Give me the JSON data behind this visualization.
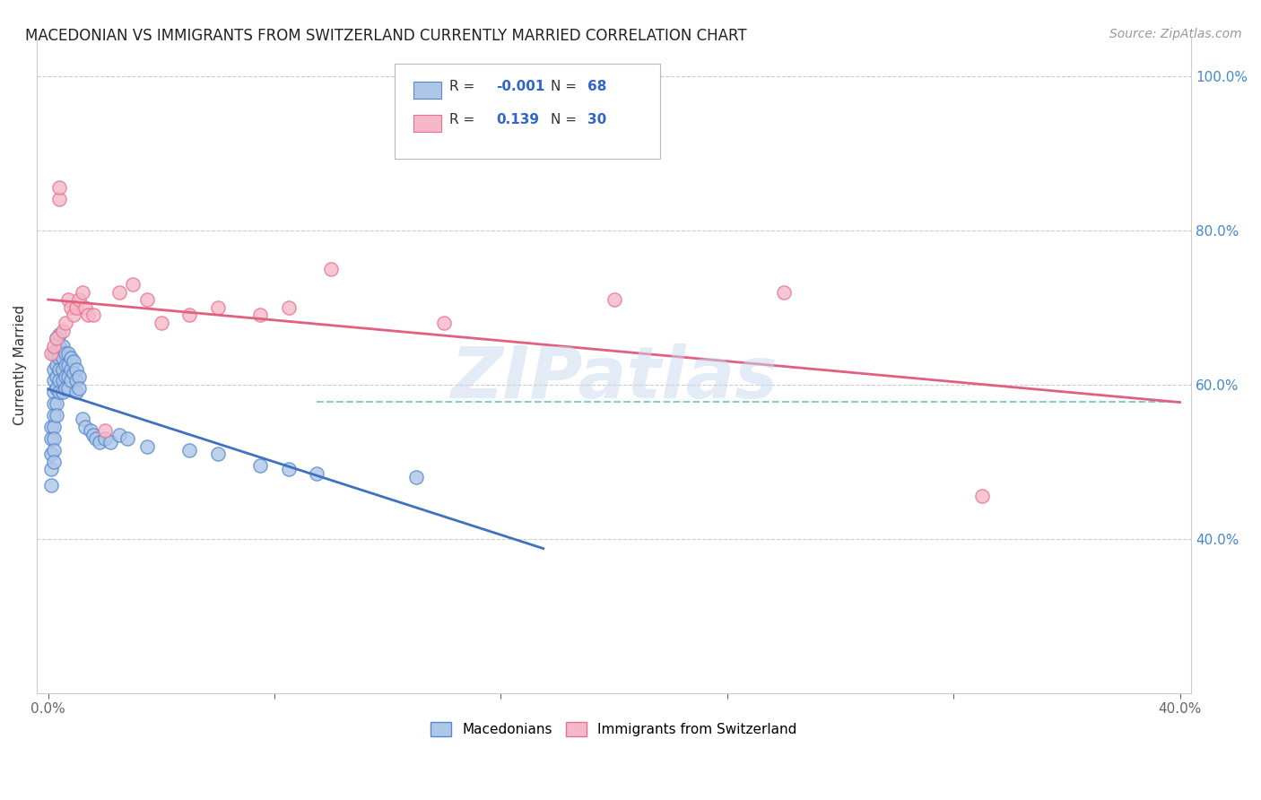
{
  "title": "MACEDONIAN VS IMMIGRANTS FROM SWITZERLAND CURRENTLY MARRIED CORRELATION CHART",
  "source": "Source: ZipAtlas.com",
  "ylabel_label": "Currently Married",
  "xlim": [
    0.0,
    0.4
  ],
  "ylim": [
    0.2,
    1.05
  ],
  "right_yticks": [
    0.4,
    0.6,
    0.8,
    1.0
  ],
  "right_yticklabels": [
    "40.0%",
    "60.0%",
    "80.0%",
    "100.0%"
  ],
  "xticks": [
    0.0,
    0.08,
    0.16,
    0.24,
    0.32,
    0.4
  ],
  "xticklabels": [
    "0.0%",
    "",
    "",
    "",
    "",
    "40.0%"
  ],
  "legend_R_blue": "-0.001",
  "legend_N_blue": "68",
  "legend_R_pink": "0.139",
  "legend_N_pink": "30",
  "blue_fill": "#aec6e8",
  "pink_fill": "#f4b8c8",
  "blue_edge": "#5588cc",
  "pink_edge": "#e87090",
  "blue_line": "#4070c0",
  "pink_line": "#e06080",
  "dashed_color": "#88cccc",
  "grid_color": "#cccccc",
  "watermark": "ZIPatlas",
  "mac_x": [
    0.001,
    0.001,
    0.001,
    0.001,
    0.001,
    0.002,
    0.002,
    0.002,
    0.002,
    0.002,
    0.002,
    0.002,
    0.002,
    0.002,
    0.002,
    0.003,
    0.003,
    0.003,
    0.003,
    0.003,
    0.003,
    0.003,
    0.004,
    0.004,
    0.004,
    0.004,
    0.004,
    0.004,
    0.005,
    0.005,
    0.005,
    0.005,
    0.005,
    0.006,
    0.006,
    0.006,
    0.006,
    0.007,
    0.007,
    0.007,
    0.007,
    0.008,
    0.008,
    0.008,
    0.009,
    0.009,
    0.01,
    0.01,
    0.01,
    0.011,
    0.011,
    0.012,
    0.013,
    0.015,
    0.016,
    0.017,
    0.018,
    0.02,
    0.022,
    0.025,
    0.028,
    0.035,
    0.05,
    0.06,
    0.075,
    0.085,
    0.095,
    0.13
  ],
  "mac_y": [
    0.545,
    0.53,
    0.51,
    0.49,
    0.47,
    0.64,
    0.62,
    0.605,
    0.59,
    0.575,
    0.56,
    0.545,
    0.53,
    0.515,
    0.5,
    0.66,
    0.645,
    0.625,
    0.61,
    0.595,
    0.575,
    0.56,
    0.665,
    0.65,
    0.635,
    0.62,
    0.605,
    0.59,
    0.65,
    0.635,
    0.62,
    0.605,
    0.59,
    0.64,
    0.625,
    0.61,
    0.595,
    0.64,
    0.625,
    0.61,
    0.595,
    0.635,
    0.62,
    0.605,
    0.63,
    0.615,
    0.62,
    0.605,
    0.59,
    0.61,
    0.595,
    0.555,
    0.545,
    0.54,
    0.535,
    0.53,
    0.525,
    0.53,
    0.525,
    0.535,
    0.53,
    0.52,
    0.515,
    0.51,
    0.495,
    0.49,
    0.485,
    0.48
  ],
  "swiss_x": [
    0.001,
    0.002,
    0.003,
    0.004,
    0.004,
    0.005,
    0.006,
    0.007,
    0.008,
    0.009,
    0.01,
    0.011,
    0.012,
    0.013,
    0.014,
    0.016,
    0.02,
    0.025,
    0.03,
    0.035,
    0.04,
    0.05,
    0.06,
    0.075,
    0.085,
    0.1,
    0.14,
    0.2,
    0.26,
    0.33
  ],
  "swiss_y": [
    0.64,
    0.65,
    0.66,
    0.84,
    0.855,
    0.67,
    0.68,
    0.71,
    0.7,
    0.69,
    0.7,
    0.71,
    0.72,
    0.7,
    0.69,
    0.69,
    0.54,
    0.72,
    0.73,
    0.71,
    0.68,
    0.69,
    0.7,
    0.69,
    0.7,
    0.75,
    0.68,
    0.71,
    0.72,
    0.455
  ]
}
